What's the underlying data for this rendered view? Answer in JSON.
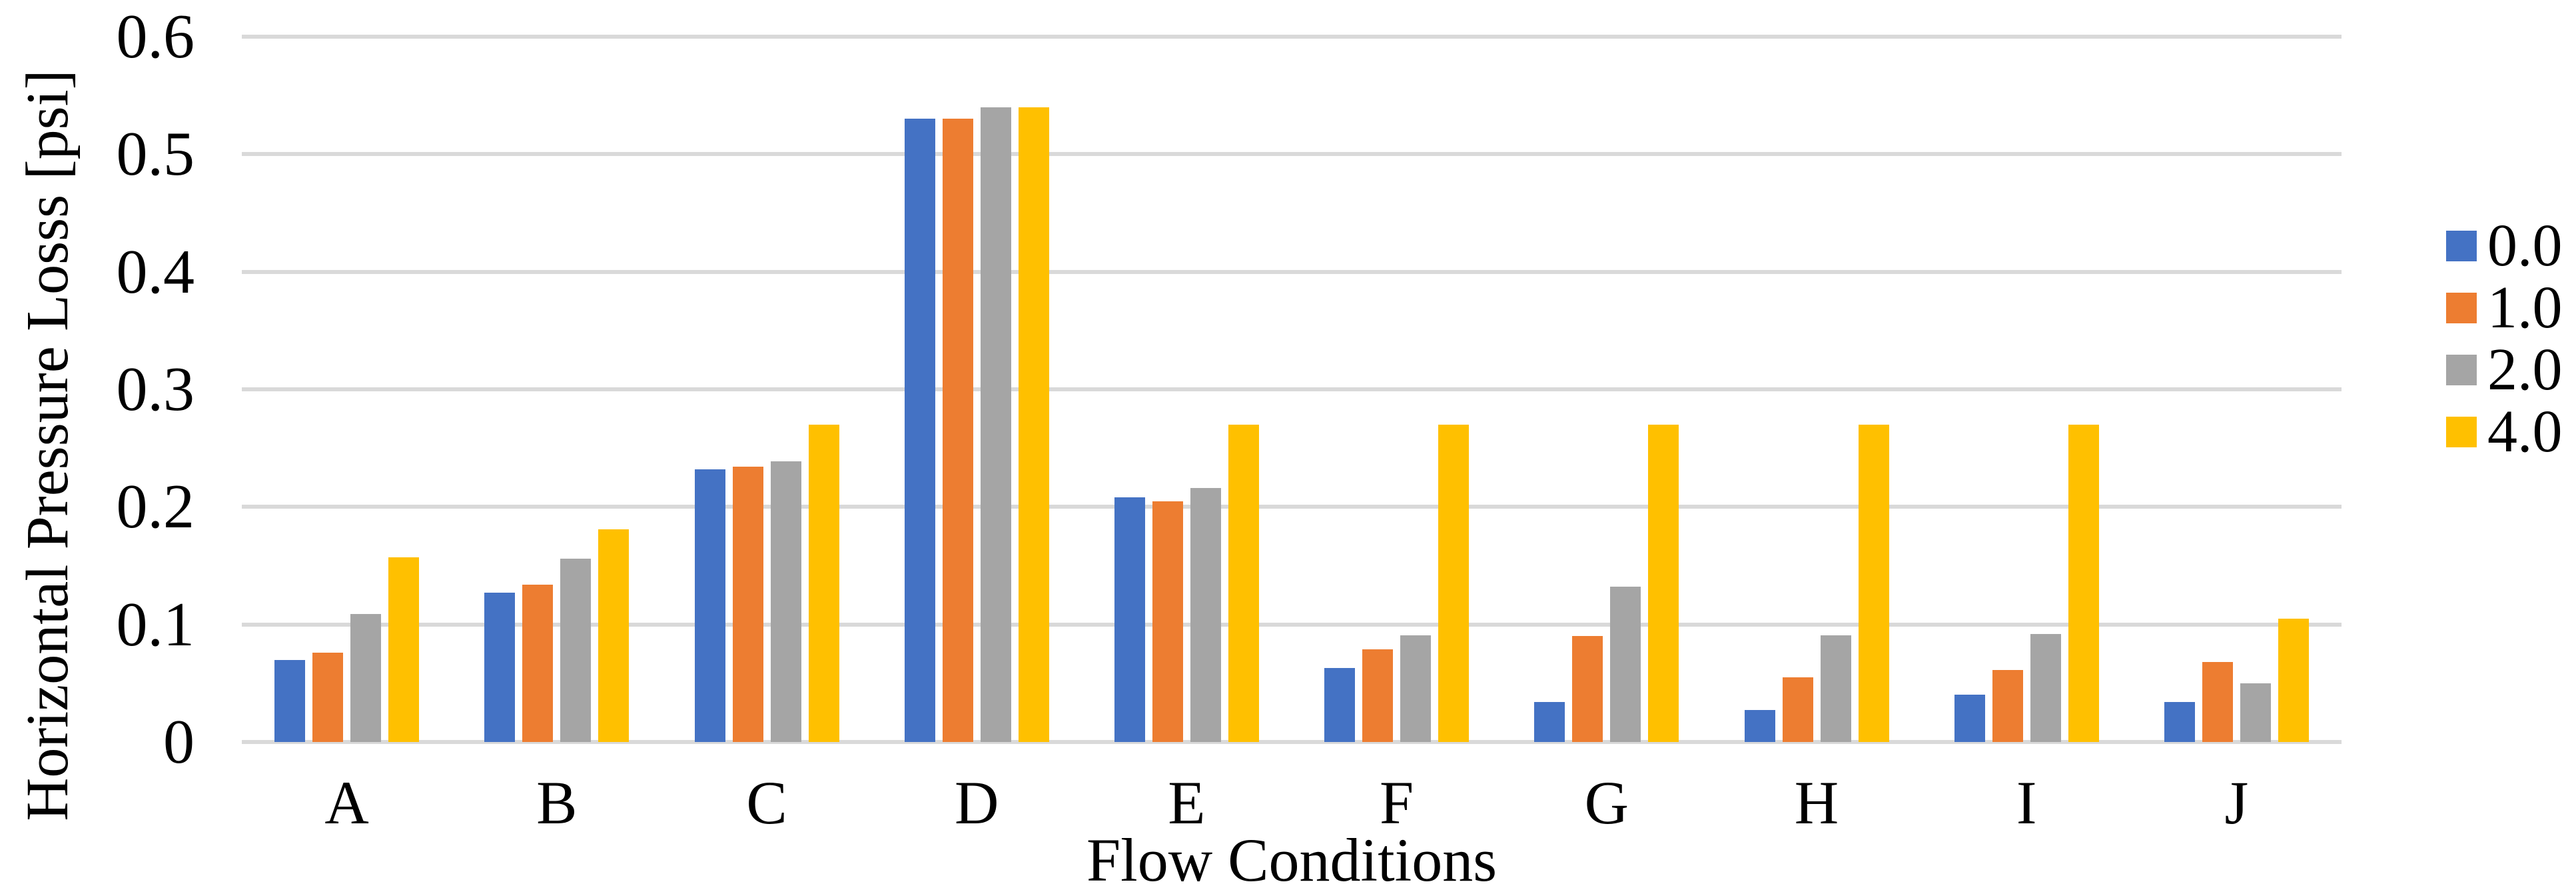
{
  "chart_data": {
    "type": "bar",
    "title": "",
    "xlabel": "Flow Conditions",
    "ylabel": "Horizontal Pressure Losss [psi]",
    "categories": [
      "A",
      "B",
      "C",
      "D",
      "E",
      "F",
      "G",
      "H",
      "I",
      "J"
    ],
    "series": [
      {
        "name": "0.0",
        "color": "#4472C4",
        "values": [
          0.07,
          0.127,
          0.232,
          0.53,
          0.208,
          0.063,
          0.034,
          0.027,
          0.04,
          0.034
        ]
      },
      {
        "name": "1.0",
        "color": "#ED7D31",
        "values": [
          0.076,
          0.134,
          0.234,
          0.53,
          0.205,
          0.079,
          0.09,
          0.055,
          0.061,
          0.068
        ]
      },
      {
        "name": "2.0",
        "color": "#A5A5A5",
        "values": [
          0.109,
          0.156,
          0.239,
          0.54,
          0.216,
          0.091,
          0.132,
          0.091,
          0.092,
          0.05
        ]
      },
      {
        "name": "4.0",
        "color": "#FFC000",
        "values": [
          0.157,
          0.181,
          0.27,
          0.54,
          0.27,
          0.27,
          0.27,
          0.27,
          0.27,
          0.105
        ]
      }
    ],
    "ylim": [
      0,
      0.6
    ],
    "yticks": [
      {
        "value": 0.0,
        "label": "0"
      },
      {
        "value": 0.1,
        "label": "0.1"
      },
      {
        "value": 0.2,
        "label": "0.2"
      },
      {
        "value": 0.3,
        "label": "0.3"
      },
      {
        "value": 0.4,
        "label": "0.4"
      },
      {
        "value": 0.5,
        "label": "0.5"
      },
      {
        "value": 0.6,
        "label": "0.6"
      }
    ],
    "grid": true,
    "gridline_color": "#D9D9D9",
    "legend_position": "right",
    "background_color": "#FFFFFF",
    "text_color": "#000000"
  }
}
